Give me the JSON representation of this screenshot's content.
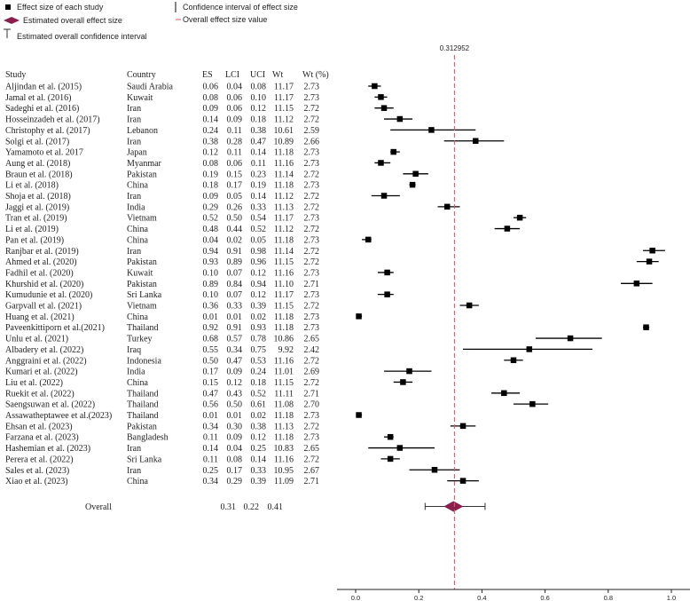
{
  "legend": {
    "effect_size": "Effect size of each study",
    "overall_effect": "Estimated overall effect size",
    "overall_ci": "Estimated overall confidence interval",
    "ci_each": "Confidence interval of effect size",
    "ref_line": "Overall effect size value"
  },
  "colors": {
    "overall_diamond": "#8b1e4d",
    "ref_line": "#e05a5a",
    "marker": "#000000"
  },
  "chart_data": {
    "type": "forest",
    "reference_value": 0.312952,
    "reference_label": "0.312952",
    "xlim": [
      0,
      1
    ],
    "xticks": [
      "0.0",
      "0.2",
      "0.4",
      "0.6",
      "0.8",
      "1.0"
    ],
    "xtick_values": [
      0,
      0.2,
      0.4,
      0.6,
      0.8,
      1.0
    ],
    "columns": [
      "Study",
      "Country",
      "ES",
      "LCI",
      "UCI",
      "Wt",
      "Wt (%)"
    ],
    "studies": [
      {
        "study": "Aljindan et al. (2015)",
        "country": "Saudi Arabia",
        "es": "0.06",
        "lci": "0.04",
        "uci": "0.08",
        "wt": "11.17",
        "wtp": "2.73"
      },
      {
        "study": "Jamal et al. (2016)",
        "country": "Kuwait",
        "es": "0.08",
        "lci": "0.06",
        "uci": "0.10",
        "wt": "11.17",
        "wtp": "2.73"
      },
      {
        "study": "Sadeghi et al. (2016)",
        "country": "Iran",
        "es": "0.09",
        "lci": "0.06",
        "uci": "0.12",
        "wt": "11.15",
        "wtp": "2.72"
      },
      {
        "study": "Hosseinzadeh et al. (2017)",
        "country": "Iran",
        "es": "0.14",
        "lci": "0.09",
        "uci": "0.18",
        "wt": "11.12",
        "wtp": "2.72"
      },
      {
        "study": "Christophy et al. (2017)",
        "country": "Lebanon",
        "es": "0.24",
        "lci": "0.11",
        "uci": "0.38",
        "wt": "10.61",
        "wtp": "2.59"
      },
      {
        "study": "Solgi et al. (2017)",
        "country": "Iran",
        "es": "0.38",
        "lci": "0.28",
        "uci": "0.47",
        "wt": "10.89",
        "wtp": "2.66"
      },
      {
        "study": "Yamamoto et al. 2017",
        "country": "Japan",
        "es": "0.12",
        "lci": "0.11",
        "uci": "0.14",
        "wt": "11.18",
        "wtp": "2.73"
      },
      {
        "study": "Aung et al. (2018)",
        "country": "Myanmar",
        "es": "0.08",
        "lci": "0.06",
        "uci": "0.11",
        "wt": "11.16",
        "wtp": "2.73"
      },
      {
        "study": "Braun et al. (2018)",
        "country": "Pakistan",
        "es": "0.19",
        "lci": "0.15",
        "uci": "0.23",
        "wt": "11.14",
        "wtp": "2.72"
      },
      {
        "study": "Li et al. (2018)",
        "country": "China",
        "es": "0.18",
        "lci": "0.17",
        "uci": "0.19",
        "wt": "11.18",
        "wtp": "2.73"
      },
      {
        "study": "Shoja et al. (2018)",
        "country": "Iran",
        "es": "0.09",
        "lci": "0.05",
        "uci": "0.14",
        "wt": "11.12",
        "wtp": "2.72"
      },
      {
        "study": "Jaggi et al. (2019)",
        "country": "India",
        "es": "0.29",
        "lci": "0.26",
        "uci": "0.33",
        "wt": "11.13",
        "wtp": "2.72"
      },
      {
        "study": "Tran et al. (2019)",
        "country": "Vietnam",
        "es": "0.52",
        "lci": "0.50",
        "uci": "0.54",
        "wt": "11.17",
        "wtp": "2.73"
      },
      {
        "study": "Li et al. (2019)",
        "country": "China",
        "es": "0.48",
        "lci": "0.44",
        "uci": "0.52",
        "wt": "11.12",
        "wtp": "2.72"
      },
      {
        "study": "Pan et al. (2019)",
        "country": "China",
        "es": "0.04",
        "lci": "0.02",
        "uci": "0.05",
        "wt": "11.18",
        "wtp": "2.73"
      },
      {
        "study": "Ranjbar et al. (2019)",
        "country": "Iran",
        "es": "0.94",
        "lci": "0.91",
        "uci": "0.98",
        "wt": "11.14",
        "wtp": "2.72"
      },
      {
        "study": "Ahmed et al. (2020)",
        "country": "Pakistan",
        "es": "0.93",
        "lci": "0.89",
        "uci": "0.96",
        "wt": "11.15",
        "wtp": "2.72"
      },
      {
        "study": "Fadhil et al. (2020)",
        "country": "Kuwait",
        "es": "0.10",
        "lci": "0.07",
        "uci": "0.12",
        "wt": "11.16",
        "wtp": "2.73"
      },
      {
        "study": "Khurshid et al. (2020)",
        "country": "Pakistan",
        "es": "0.89",
        "lci": "0.84",
        "uci": "0.94",
        "wt": "11.10",
        "wtp": "2.71"
      },
      {
        "study": "Kumudunie et al. (2020)",
        "country": "Sri Lanka",
        "es": "0.10",
        "lci": "0.07",
        "uci": "0.12",
        "wt": "11.17",
        "wtp": "2.73"
      },
      {
        "study": "Garpvall et al. (2021)",
        "country": "Vietnam",
        "es": "0.36",
        "lci": "0.33",
        "uci": "0.39",
        "wt": "11.15",
        "wtp": "2.72"
      },
      {
        "study": "Huang et al. (2021)",
        "country": "China",
        "es": "0.01",
        "lci": "0.01",
        "uci": "0.02",
        "wt": "11.18",
        "wtp": "2.73"
      },
      {
        "study": "Paveenkittiporn et al.(2021)",
        "country": "Thailand",
        "es": "0.92",
        "lci": "0.91",
        "uci": "0.93",
        "wt": "11.18",
        "wtp": "2.73"
      },
      {
        "study": "Unlu et al. (2021)",
        "country": "Turkey",
        "es": "0.68",
        "lci": "0.57",
        "uci": "0.78",
        "wt": "10.86",
        "wtp": "2.65"
      },
      {
        "study": "Albadery et al. (2022)",
        "country": "Iraq",
        "es": "0.55",
        "lci": "0.34",
        "uci": "0.75",
        "wt": "9.92",
        "wtp": "2.42"
      },
      {
        "study": "Anggraini et al. (2022)",
        "country": "Indonesia",
        "es": "0.50",
        "lci": "0.47",
        "uci": "0.53",
        "wt": "11.16",
        "wtp": "2.72"
      },
      {
        "study": "Kumari et al. (2022)",
        "country": "India",
        "es": "0.17",
        "lci": "0.09",
        "uci": "0.24",
        "wt": "11.01",
        "wtp": "2.69"
      },
      {
        "study": "Liu et al. (2022)",
        "country": "China",
        "es": "0.15",
        "lci": "0.12",
        "uci": "0.18",
        "wt": "11.15",
        "wtp": "2.72"
      },
      {
        "study": "Ruekit et al. (2022)",
        "country": "Thailand",
        "es": "0.47",
        "lci": "0.43",
        "uci": "0.52",
        "wt": "11.11",
        "wtp": "2.71"
      },
      {
        "study": "Saengsuwan et al. (2022)",
        "country": "Thailand",
        "es": "0.56",
        "lci": "0.50",
        "uci": "0.61",
        "wt": "11.08",
        "wtp": "2.70"
      },
      {
        "study": "Assawatheptawee et al.(2023)",
        "country": "Thailand",
        "es": "0.01",
        "lci": "0.01",
        "uci": "0.02",
        "wt": "11.18",
        "wtp": "2.73"
      },
      {
        "study": "Ehsan et al. (2023)",
        "country": "Pakistan",
        "es": "0.34",
        "lci": "0.30",
        "uci": "0.38",
        "wt": "11.13",
        "wtp": "2.72"
      },
      {
        "study": "Farzana et al. (2023)",
        "country": "Bangladesh",
        "es": "0.11",
        "lci": "0.09",
        "uci": "0.12",
        "wt": "11.18",
        "wtp": "2.73"
      },
      {
        "study": "Hashemian et al. (2023)",
        "country": "Iran",
        "es": "0.14",
        "lci": "0.04",
        "uci": "0.25",
        "wt": "10.83",
        "wtp": "2.65"
      },
      {
        "study": "Perera et al. (2022)",
        "country": "Sri Lanka",
        "es": "0.11",
        "lci": "0.08",
        "uci": "0.14",
        "wt": "11.16",
        "wtp": "2.72"
      },
      {
        "study": "Sales et al. (2023)",
        "country": "Iran",
        "es": "0.25",
        "lci": "0.17",
        "uci": "0.33",
        "wt": "10.95",
        "wtp": "2.67"
      },
      {
        "study": "Xiao et al. (2023)",
        "country": "China",
        "es": "0.34",
        "lci": "0.29",
        "uci": "0.39",
        "wt": "11.09",
        "wtp": "2.71"
      }
    ],
    "overall": {
      "label": "Overall",
      "es": "0.31",
      "lci": "0.22",
      "uci": "0.41"
    }
  }
}
